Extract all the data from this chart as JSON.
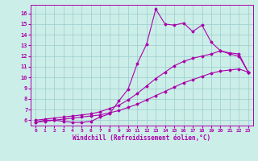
{
  "bg_color": "#cceee8",
  "line_color": "#aa00aa",
  "grid_color": "#99cccc",
  "xlabel": "Windchill (Refroidissement éolien,°C)",
  "ylabel_ticks": [
    6,
    7,
    8,
    9,
    10,
    11,
    12,
    13,
    14,
    15,
    16
  ],
  "xlabel_ticks": [
    0,
    1,
    2,
    3,
    4,
    5,
    6,
    7,
    8,
    9,
    10,
    11,
    12,
    13,
    14,
    15,
    16,
    17,
    18,
    19,
    20,
    21,
    22,
    23
  ],
  "xlim": [
    -0.5,
    23.5
  ],
  "ylim": [
    5.5,
    16.8
  ],
  "series": [
    {
      "x": [
        0,
        1,
        2,
        3,
        4,
        5,
        6,
        7,
        8,
        9,
        10,
        11,
        12,
        13,
        14,
        15,
        16,
        17,
        18,
        19,
        20,
        21,
        22,
        23
      ],
      "y": [
        5.8,
        6.0,
        6.0,
        5.9,
        5.8,
        5.8,
        5.9,
        6.3,
        6.6,
        7.8,
        8.9,
        11.3,
        13.1,
        16.4,
        15.0,
        14.9,
        15.1,
        14.3,
        14.9,
        13.3,
        12.5,
        12.2,
        12.0,
        10.5
      ]
    },
    {
      "x": [
        0,
        1,
        2,
        3,
        4,
        5,
        6,
        7,
        8,
        9,
        10,
        11,
        12,
        13,
        14,
        15,
        16,
        17,
        18,
        19,
        20,
        21,
        22,
        23
      ],
      "y": [
        6.0,
        6.1,
        6.2,
        6.3,
        6.4,
        6.5,
        6.6,
        6.8,
        7.1,
        7.4,
        7.9,
        8.5,
        9.2,
        9.9,
        10.5,
        11.1,
        11.5,
        11.8,
        12.0,
        12.2,
        12.5,
        12.3,
        12.2,
        10.5
      ]
    },
    {
      "x": [
        0,
        1,
        2,
        3,
        4,
        5,
        6,
        7,
        8,
        9,
        10,
        11,
        12,
        13,
        14,
        15,
        16,
        17,
        18,
        19,
        20,
        21,
        22,
        23
      ],
      "y": [
        5.8,
        5.9,
        6.0,
        6.1,
        6.2,
        6.3,
        6.4,
        6.5,
        6.7,
        6.9,
        7.2,
        7.5,
        7.9,
        8.3,
        8.7,
        9.1,
        9.5,
        9.8,
        10.1,
        10.4,
        10.6,
        10.7,
        10.8,
        10.5
      ]
    }
  ]
}
